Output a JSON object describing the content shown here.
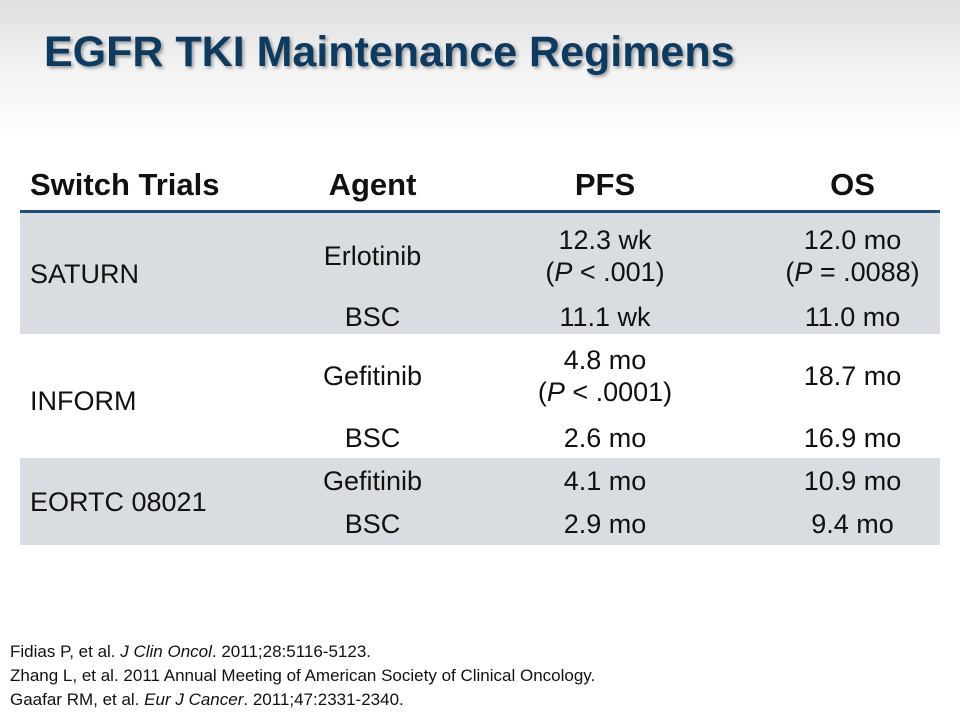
{
  "title": "EGFR TKI Maintenance Regimens",
  "table": {
    "headers": [
      "Switch Trials",
      "Agent",
      "PFS",
      "OS"
    ],
    "saturn": {
      "trial": "SATURN",
      "erlotinib": {
        "agent": "Erlotinib",
        "pfs": "12.3 wk",
        "pfs_p": "(P < .001)",
        "os": "12.0 mo",
        "os_p": "(P = .0088)"
      },
      "bsc": {
        "agent": "BSC",
        "pfs": "11.1 wk",
        "os": "11.0 mo"
      }
    },
    "inform": {
      "trial": "INFORM",
      "gefitinib": {
        "agent": "Gefitinib",
        "pfs": "4.8 mo",
        "pfs_p": "(P < .0001)",
        "os": "18.7 mo"
      },
      "bsc": {
        "agent": "BSC",
        "pfs": "2.6 mo",
        "os": "16.9 mo"
      }
    },
    "eortc": {
      "trial": "EORTC 08021",
      "gefitinib": {
        "agent": "Gefitinib",
        "pfs": "4.1 mo",
        "os": "10.9 mo"
      },
      "bsc": {
        "agent": "BSC",
        "pfs": "2.9 mo",
        "os": "9.4 mo"
      }
    },
    "row_shading": "#d9dde1",
    "header_rule_color": "#1f4e79"
  },
  "references": [
    {
      "before": "Fidias P, et al. ",
      "journal": "J Clin Oncol",
      "after": ". 2011;28:5116-5123."
    },
    {
      "before": "Zhang L, et al. 2011 Annual Meeting of American Society of Clinical Oncology.",
      "journal": "",
      "after": ""
    },
    {
      "before": "Gaafar RM, et al. ",
      "journal": "Eur J Cancer",
      "after": ". 2011;47:2331-2340."
    }
  ],
  "title_color": "#0f3a5f"
}
